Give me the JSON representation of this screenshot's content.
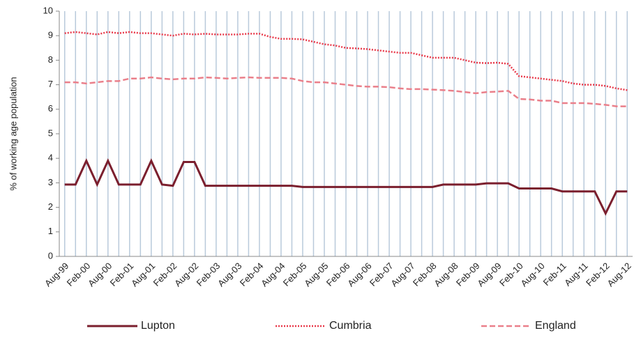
{
  "chart_data": {
    "type": "line",
    "y_label": "% of working age population",
    "categories": [
      "Aug-99",
      null,
      "Feb-00",
      null,
      "Aug-00",
      null,
      "Feb-01",
      null,
      "Aug-01",
      null,
      "Feb-02",
      null,
      "Aug-02",
      null,
      "Feb-03",
      null,
      "Aug-03",
      null,
      "Feb-04",
      null,
      "Aug-04",
      null,
      "Feb-05",
      null,
      "Aug-05",
      null,
      "Feb-06",
      null,
      "Aug-06",
      null,
      "Feb-07",
      null,
      "Aug-07",
      null,
      "Feb-08",
      null,
      "Aug-08",
      null,
      "Feb-09",
      null,
      "Aug-09",
      null,
      "Feb-10",
      null,
      "Aug-10",
      null,
      "Feb-11",
      null,
      "Aug-11",
      null,
      "Feb-12",
      null,
      "Aug-12"
    ],
    "series": [
      {
        "name": "Lupton",
        "color": "#7b1f2e",
        "line_style": "solid",
        "values": [
          2.93,
          2.93,
          3.9,
          2.93,
          3.9,
          2.93,
          2.93,
          2.93,
          3.9,
          2.93,
          2.88,
          3.85,
          3.85,
          2.88,
          2.88,
          2.88,
          2.88,
          2.88,
          2.88,
          2.88,
          2.88,
          2.88,
          2.83,
          2.83,
          2.83,
          2.83,
          2.83,
          2.83,
          2.83,
          2.83,
          2.83,
          2.83,
          2.83,
          2.83,
          2.83,
          2.93,
          2.93,
          2.93,
          2.93,
          2.98,
          2.98,
          2.98,
          2.77,
          2.77,
          2.77,
          2.77,
          2.65,
          2.65,
          2.65,
          2.65,
          1.75,
          2.65,
          2.65
        ]
      },
      {
        "name": "Cumbria",
        "color": "#e8394a",
        "line_style": "dotted",
        "values": [
          9.1,
          9.15,
          9.1,
          9.05,
          9.15,
          9.1,
          9.15,
          9.1,
          9.1,
          9.05,
          9.0,
          9.08,
          9.05,
          9.08,
          9.05,
          9.05,
          9.05,
          9.08,
          9.08,
          8.95,
          8.87,
          8.87,
          8.85,
          8.75,
          8.65,
          8.6,
          8.5,
          8.48,
          8.45,
          8.4,
          8.35,
          8.3,
          8.3,
          8.2,
          8.1,
          8.1,
          8.1,
          8.0,
          7.9,
          7.88,
          7.9,
          7.85,
          7.35,
          7.3,
          7.25,
          7.2,
          7.15,
          7.05,
          7.0,
          7.0,
          6.95,
          6.85,
          6.78
        ]
      },
      {
        "name": "England",
        "color": "#ea7f8a",
        "line_style": "dashed",
        "values": [
          7.1,
          7.1,
          7.05,
          7.1,
          7.15,
          7.15,
          7.25,
          7.25,
          7.3,
          7.25,
          7.22,
          7.25,
          7.25,
          7.3,
          7.28,
          7.25,
          7.28,
          7.3,
          7.28,
          7.28,
          7.28,
          7.25,
          7.15,
          7.1,
          7.1,
          7.05,
          7.0,
          6.95,
          6.92,
          6.92,
          6.9,
          6.85,
          6.82,
          6.82,
          6.8,
          6.78,
          6.75,
          6.7,
          6.65,
          6.7,
          6.72,
          6.75,
          6.42,
          6.4,
          6.35,
          6.35,
          6.25,
          6.25,
          6.25,
          6.22,
          6.18,
          6.12,
          6.12
        ]
      }
    ],
    "ylim": [
      0,
      10
    ],
    "yticks": [
      0,
      1,
      2,
      3,
      4,
      5,
      6,
      7,
      8,
      9,
      10
    ],
    "grid": "vertical",
    "legend": "bottom"
  }
}
